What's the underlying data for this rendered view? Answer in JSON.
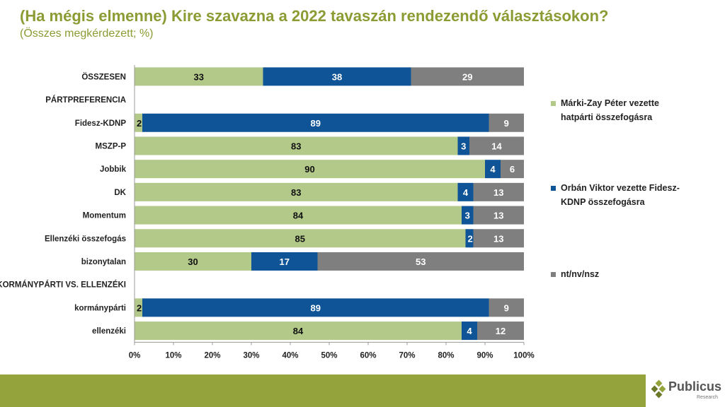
{
  "title": "(Ha mégis elmenne) Kire szavazna a 2022 tavaszán rendezendő választásokon?",
  "subtitle": "(Összes megkérdezett; %)",
  "chart_data": {
    "type": "bar",
    "stacked": true,
    "orientation": "horizontal",
    "categories": [
      "ÖSSZESEN",
      "PÁRTPREFERENCIA",
      "Fidesz-KDNP",
      "MSZP-P",
      "Jobbik",
      "DK",
      "Momentum",
      "Ellenzéki összefogás",
      "bizonytalan",
      "KORMÁNYPÁRTI VS. ELLENZÉKI",
      "kormánypárti",
      "ellenzéki"
    ],
    "series": [
      {
        "name": "Márki-Zay Péter vezette hatpárti összefogásra",
        "color": "#b3c98a",
        "values": [
          33,
          null,
          2,
          83,
          90,
          83,
          84,
          85,
          30,
          null,
          2,
          84
        ]
      },
      {
        "name": "Orbán Viktor vezette Fidesz-KDNP összefogásra",
        "color": "#0e5496",
        "values": [
          38,
          null,
          89,
          3,
          4,
          4,
          3,
          2,
          17,
          null,
          89,
          4
        ]
      },
      {
        "name": "nt/nv/nsz",
        "color": "#7f7f7f",
        "values": [
          29,
          null,
          9,
          14,
          6,
          13,
          13,
          13,
          53,
          null,
          9,
          12
        ]
      }
    ],
    "legend_lines": [
      [
        "Márki-Zay Péter vezette",
        "hatpárti összefogásra"
      ],
      [
        "Orbán Viktor vezette Fidesz-",
        "KDNP összefogásra"
      ],
      [
        "nt/nv/nsz"
      ]
    ],
    "xticks": [
      "0%",
      "10%",
      "20%",
      "30%",
      "40%",
      "50%",
      "60%",
      "70%",
      "80%",
      "90%",
      "100%"
    ],
    "xlim": [
      0,
      100
    ],
    "legend_position": "right"
  },
  "logo": {
    "name": "Publicus",
    "sub": "Research"
  }
}
